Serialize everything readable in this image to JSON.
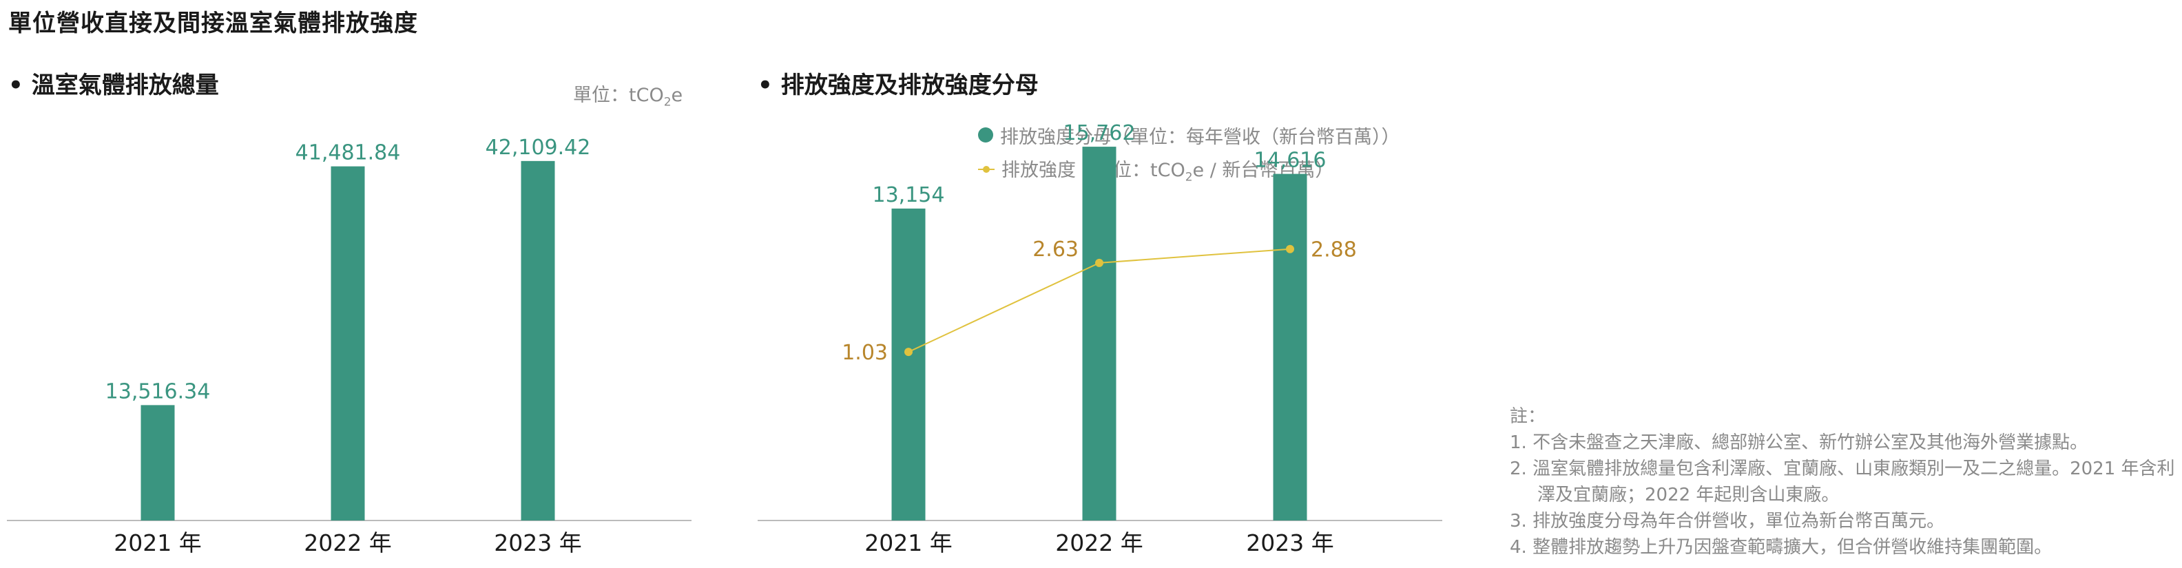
{
  "page_title": "單位營收直接及間接溫室氣體排放強度",
  "colors": {
    "bar": "#3a9580",
    "line": "#e0c23e",
    "line_label": "#b8862c",
    "axis": "#bbbbbb"
  },
  "left_chart": {
    "title": "溫室氣體排放總量",
    "unit_prefix": "單位：tCO",
    "unit_sub": "2",
    "unit_suffix": "e"
  },
  "right_chart": {
    "title": "排放強度及排放強度分母",
    "legend_bar": "排放強度分母（單位：每年營收（新台幣百萬））",
    "legend_line_prefix": "排放強度（單位：tCO",
    "legend_line_sub": "2",
    "legend_line_suffix": "e / 新台幣百萬）"
  },
  "chart_data": [
    {
      "type": "bar",
      "title": "溫室氣體排放總量",
      "categories": [
        "2021 年",
        "2022 年",
        "2023 年"
      ],
      "values": [
        13516.34,
        41481.84,
        42109.42
      ],
      "value_labels": [
        "13,516.34",
        "41,481.84",
        "42,109.42"
      ],
      "ylim": [
        0,
        50000
      ],
      "grid": false
    },
    {
      "type": "bar",
      "title": "排放強度及排放強度分母",
      "categories": [
        "2021 年",
        "2022 年",
        "2023 年"
      ],
      "series": [
        {
          "name": "排放強度分母（單位：每年營收（新台幣百萬））",
          "type": "bar",
          "values": [
            13154,
            15762,
            14616
          ],
          "value_labels": [
            "13,154",
            "15,762",
            "14,616"
          ]
        },
        {
          "name": "排放強度（單位：tCO2e / 新台幣百萬）",
          "type": "line",
          "values": [
            1.03,
            2.63,
            2.88
          ],
          "value_labels": [
            "1.03",
            "2.63",
            "2.88"
          ]
        }
      ],
      "ylim": [
        0,
        18000
      ],
      "y2lim": [
        -2.0,
        5.5
      ],
      "legend": "top-center",
      "grid": false
    }
  ],
  "notes": {
    "title": "註：",
    "items": [
      "1. 不含未盤查之天津廠、總部辦公室、新竹辦公室及其他海外營業據點。",
      "2. 溫室氣體排放總量包含利澤廠、宜蘭廠、山東廠類別一及二之總量。2021 年含利澤及宜蘭廠；2022 年起則含山東廠。",
      "3. 排放強度分母為年合併營收，單位為新台幣百萬元。",
      "4. 整體排放趨勢上升乃因盤查範疇擴大，但合併營收維持集團範圍。"
    ]
  }
}
